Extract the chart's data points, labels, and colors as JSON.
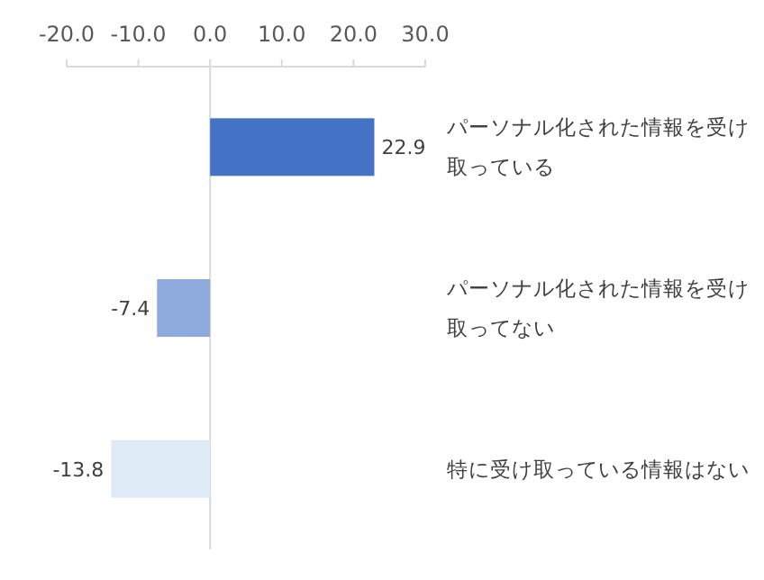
{
  "chart_data": {
    "type": "bar",
    "orientation": "horizontal",
    "data_labels": true,
    "categories": [
      "パーソナル化された情報を受け取っている",
      "パーソナル化された情報を受け取ってない",
      "特に受け取っている情報はない"
    ],
    "values": [
      22.9,
      -7.4,
      -13.8
    ],
    "colors": [
      "#4472c4",
      "#8faadc",
      "#deebf7"
    ],
    "xlim": [
      -20,
      30
    ],
    "xticks": [
      {
        "value": -20,
        "label": "-20.0"
      },
      {
        "value": -10,
        "label": "-10.0"
      },
      {
        "value": 0,
        "label": "0.0"
      },
      {
        "value": 10,
        "label": "10.0"
      },
      {
        "value": 20,
        "label": "20.0"
      },
      {
        "value": 30,
        "label": "30.0"
      }
    ]
  }
}
